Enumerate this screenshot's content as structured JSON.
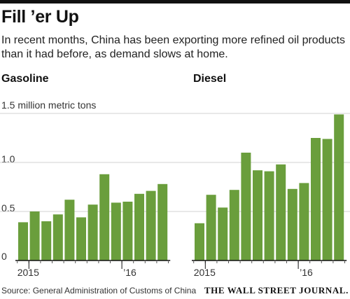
{
  "header": {
    "title": "Fill ’er Up",
    "subtitle": "In recent months, China has been exporting more refined oil products than it had before, as demand slows at home."
  },
  "footer": {
    "source": "Source: General Administration of Customs of China",
    "brand": "THE WALL STREET JOURNAL."
  },
  "colors": {
    "bar": "#6a9e3c",
    "grid": "#d0d0d0",
    "axis": "#111111",
    "ticks": "#555555"
  },
  "chart_data": [
    {
      "type": "bar",
      "title": "Gasoline",
      "ylabel": "1.5 million metric tons",
      "ylim": [
        0,
        1.5
      ],
      "yticks": [
        {
          "value": 0,
          "label": "0"
        },
        {
          "value": 0.5,
          "label": "0.5"
        },
        {
          "value": 1.0,
          "label": "1.0"
        },
        {
          "value": 1.5,
          "label": "1.5 million metric tons"
        }
      ],
      "x_tick_labels": [
        {
          "index": 1,
          "label": "2015"
        },
        {
          "index": 9,
          "label": "’16"
        }
      ],
      "values": [
        0.39,
        0.5,
        0.4,
        0.47,
        0.62,
        0.44,
        0.57,
        0.88,
        0.59,
        0.6,
        0.68,
        0.71,
        0.78
      ],
      "grid": true
    },
    {
      "type": "bar",
      "title": "Diesel",
      "ylim": [
        0,
        1.5
      ],
      "x_tick_labels": [
        {
          "index": 1,
          "label": "2015"
        },
        {
          "index": 9,
          "label": "’16"
        }
      ],
      "values": [
        0.38,
        0.67,
        0.54,
        0.72,
        1.1,
        0.92,
        0.91,
        0.98,
        0.73,
        0.79,
        1.25,
        1.24,
        1.49
      ],
      "grid": true
    }
  ]
}
